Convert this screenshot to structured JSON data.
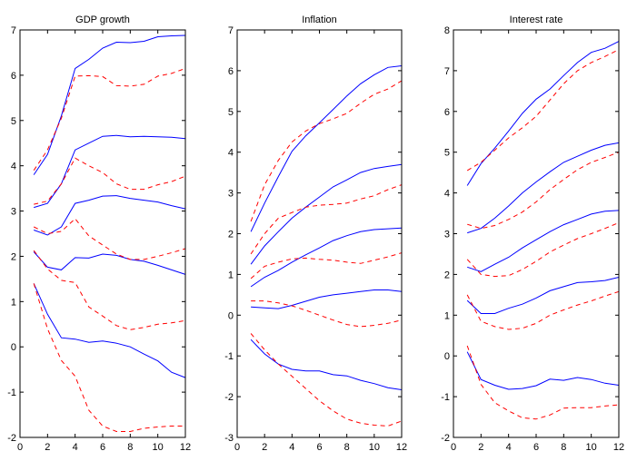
{
  "chart_data": [
    {
      "type": "line",
      "title": "GDP growth",
      "xlabel": "",
      "ylabel": "",
      "xlim": [
        0,
        12
      ],
      "ylim": [
        -2,
        7
      ],
      "xticks": [
        0,
        2,
        4,
        6,
        8,
        10,
        12
      ],
      "yticks": [
        -2,
        -1,
        0,
        1,
        2,
        3,
        4,
        5,
        6,
        7
      ],
      "grid": false,
      "legend": "none",
      "x": [
        1,
        2,
        3,
        4,
        5,
        6,
        7,
        8,
        9,
        10,
        11,
        12
      ],
      "series": [
        {
          "name": "solid-1",
          "style": "solid",
          "color": "#0000ff",
          "values": [
            3.8,
            4.25,
            5.1,
            6.15,
            6.35,
            6.6,
            6.73,
            6.72,
            6.75,
            6.85,
            6.87,
            6.88
          ]
        },
        {
          "name": "solid-2",
          "style": "solid",
          "color": "#0000ff",
          "values": [
            3.08,
            3.17,
            3.6,
            4.35,
            4.5,
            4.65,
            4.67,
            4.64,
            4.65,
            4.64,
            4.63,
            4.6
          ]
        },
        {
          "name": "solid-3",
          "style": "solid",
          "color": "#0000ff",
          "values": [
            2.58,
            2.47,
            2.65,
            3.17,
            3.24,
            3.33,
            3.34,
            3.28,
            3.24,
            3.2,
            3.12,
            3.05
          ]
        },
        {
          "name": "solid-4",
          "style": "solid",
          "color": "#0000ff",
          "values": [
            2.1,
            1.76,
            1.7,
            1.97,
            1.96,
            2.05,
            2.02,
            1.93,
            1.89,
            1.8,
            1.7,
            1.6
          ]
        },
        {
          "name": "solid-5",
          "style": "solid",
          "color": "#0000ff",
          "values": [
            1.4,
            0.72,
            0.2,
            0.17,
            0.1,
            0.13,
            0.08,
            0.0,
            -0.16,
            -0.31,
            -0.56,
            -0.68
          ]
        },
        {
          "name": "dashed-1",
          "style": "dashed",
          "color": "#ff0000",
          "values": [
            3.9,
            4.35,
            5.05,
            5.98,
            5.99,
            5.97,
            5.77,
            5.76,
            5.8,
            5.98,
            6.04,
            6.15
          ]
        },
        {
          "name": "dashed-2",
          "style": "dashed",
          "color": "#ff0000",
          "values": [
            3.15,
            3.22,
            3.6,
            4.17,
            4.0,
            3.85,
            3.6,
            3.48,
            3.48,
            3.58,
            3.65,
            3.77
          ]
        },
        {
          "name": "dashed-3",
          "style": "dashed",
          "color": "#ff0000",
          "values": [
            2.65,
            2.5,
            2.55,
            2.83,
            2.45,
            2.25,
            2.05,
            1.93,
            1.93,
            2.0,
            2.08,
            2.17
          ]
        },
        {
          "name": "dashed-4",
          "style": "dashed",
          "color": "#ff0000",
          "values": [
            2.13,
            1.72,
            1.47,
            1.42,
            0.88,
            0.68,
            0.47,
            0.38,
            0.43,
            0.5,
            0.53,
            0.58
          ]
        },
        {
          "name": "dashed-5",
          "style": "dashed",
          "color": "#ff0000",
          "values": [
            1.4,
            0.4,
            -0.3,
            -0.65,
            -1.4,
            -1.75,
            -1.87,
            -1.87,
            -1.8,
            -1.77,
            -1.75,
            -1.75
          ]
        }
      ]
    },
    {
      "type": "line",
      "title": "Inflation",
      "xlabel": "",
      "ylabel": "",
      "xlim": [
        0,
        12
      ],
      "ylim": [
        -3,
        7
      ],
      "xticks": [
        0,
        2,
        4,
        6,
        8,
        10,
        12
      ],
      "yticks": [
        -3,
        -2,
        -1,
        0,
        1,
        2,
        3,
        4,
        5,
        6,
        7
      ],
      "grid": false,
      "legend": "none",
      "x": [
        1,
        2,
        3,
        4,
        5,
        6,
        7,
        8,
        9,
        10,
        11,
        12
      ],
      "series": [
        {
          "name": "solid-1",
          "style": "solid",
          "color": "#0000ff",
          "values": [
            2.05,
            2.75,
            3.4,
            4.02,
            4.4,
            4.72,
            5.05,
            5.38,
            5.68,
            5.9,
            6.08,
            6.12
          ]
        },
        {
          "name": "solid-2",
          "style": "solid",
          "color": "#0000ff",
          "values": [
            1.25,
            1.7,
            2.05,
            2.38,
            2.65,
            2.9,
            3.15,
            3.32,
            3.5,
            3.6,
            3.65,
            3.7
          ]
        },
        {
          "name": "solid-3",
          "style": "solid",
          "color": "#0000ff",
          "values": [
            0.7,
            0.93,
            1.1,
            1.3,
            1.48,
            1.65,
            1.83,
            1.95,
            2.05,
            2.1,
            2.12,
            2.14
          ]
        },
        {
          "name": "solid-4",
          "style": "solid",
          "color": "#0000ff",
          "values": [
            0.2,
            0.18,
            0.16,
            0.24,
            0.34,
            0.44,
            0.5,
            0.54,
            0.58,
            0.62,
            0.62,
            0.58
          ]
        },
        {
          "name": "solid-5",
          "style": "solid",
          "color": "#0000ff",
          "values": [
            -0.6,
            -0.95,
            -1.2,
            -1.33,
            -1.37,
            -1.37,
            -1.46,
            -1.49,
            -1.6,
            -1.68,
            -1.78,
            -1.83
          ]
        },
        {
          "name": "dashed-1",
          "style": "dashed",
          "color": "#ff0000",
          "values": [
            2.3,
            3.2,
            3.8,
            4.25,
            4.52,
            4.7,
            4.82,
            4.95,
            5.2,
            5.42,
            5.55,
            5.75
          ]
        },
        {
          "name": "dashed-2",
          "style": "dashed",
          "color": "#ff0000",
          "values": [
            1.5,
            2.0,
            2.38,
            2.52,
            2.65,
            2.7,
            2.72,
            2.75,
            2.85,
            2.93,
            3.08,
            3.2
          ]
        },
        {
          "name": "dashed-3",
          "style": "dashed",
          "color": "#ff0000",
          "values": [
            0.9,
            1.2,
            1.3,
            1.38,
            1.4,
            1.37,
            1.35,
            1.3,
            1.27,
            1.35,
            1.43,
            1.53
          ]
        },
        {
          "name": "dashed-4",
          "style": "dashed",
          "color": "#ff0000",
          "values": [
            0.35,
            0.35,
            0.3,
            0.23,
            0.12,
            0.0,
            -0.12,
            -0.23,
            -0.28,
            -0.25,
            -0.2,
            -0.12
          ]
        },
        {
          "name": "dashed-5",
          "style": "dashed",
          "color": "#ff0000",
          "values": [
            -0.45,
            -0.85,
            -1.2,
            -1.5,
            -1.8,
            -2.1,
            -2.35,
            -2.55,
            -2.65,
            -2.7,
            -2.72,
            -2.6
          ]
        }
      ]
    },
    {
      "type": "line",
      "title": "Interest rate",
      "xlabel": "",
      "ylabel": "",
      "xlim": [
        0,
        12
      ],
      "ylim": [
        -2,
        8
      ],
      "xticks": [
        0,
        2,
        4,
        6,
        8,
        10,
        12
      ],
      "yticks": [
        -2,
        -1,
        0,
        1,
        2,
        3,
        4,
        5,
        6,
        7,
        8
      ],
      "grid": false,
      "legend": "none",
      "x": [
        1,
        2,
        3,
        4,
        5,
        6,
        7,
        8,
        9,
        10,
        11,
        12
      ],
      "series": [
        {
          "name": "solid-1",
          "style": "solid",
          "color": "#0000ff",
          "values": [
            4.18,
            4.72,
            5.1,
            5.52,
            5.95,
            6.3,
            6.55,
            6.88,
            7.2,
            7.45,
            7.55,
            7.72
          ]
        },
        {
          "name": "solid-2",
          "style": "solid",
          "color": "#0000ff",
          "values": [
            3.02,
            3.13,
            3.38,
            3.68,
            4.0,
            4.27,
            4.52,
            4.75,
            4.9,
            5.05,
            5.17,
            5.23
          ]
        },
        {
          "name": "solid-3",
          "style": "solid",
          "color": "#0000ff",
          "values": [
            2.18,
            2.07,
            2.25,
            2.42,
            2.65,
            2.85,
            3.05,
            3.22,
            3.35,
            3.48,
            3.55,
            3.57
          ]
        },
        {
          "name": "solid-4",
          "style": "solid",
          "color": "#0000ff",
          "values": [
            1.36,
            1.04,
            1.04,
            1.17,
            1.27,
            1.42,
            1.6,
            1.7,
            1.8,
            1.82,
            1.85,
            1.93
          ]
        },
        {
          "name": "solid-5",
          "style": "solid",
          "color": "#0000ff",
          "values": [
            0.1,
            -0.58,
            -0.72,
            -0.82,
            -0.8,
            -0.73,
            -0.57,
            -0.6,
            -0.53,
            -0.58,
            -0.67,
            -0.72
          ]
        },
        {
          "name": "dashed-1",
          "style": "dashed",
          "color": "#ff0000",
          "values": [
            4.55,
            4.75,
            5.05,
            5.35,
            5.6,
            5.88,
            6.28,
            6.68,
            7.0,
            7.2,
            7.35,
            7.52
          ]
        },
        {
          "name": "dashed-2",
          "style": "dashed",
          "color": "#ff0000",
          "values": [
            3.23,
            3.13,
            3.2,
            3.35,
            3.53,
            3.78,
            4.08,
            4.33,
            4.57,
            4.75,
            4.87,
            5.0
          ]
        },
        {
          "name": "dashed-3",
          "style": "dashed",
          "color": "#ff0000",
          "values": [
            2.37,
            2.0,
            1.95,
            1.97,
            2.12,
            2.32,
            2.55,
            2.72,
            2.88,
            3.0,
            3.13,
            3.27
          ]
        },
        {
          "name": "dashed-4",
          "style": "dashed",
          "color": "#ff0000",
          "values": [
            1.5,
            0.85,
            0.72,
            0.65,
            0.68,
            0.8,
            1.0,
            1.13,
            1.25,
            1.35,
            1.47,
            1.58
          ]
        },
        {
          "name": "dashed-5",
          "style": "dashed",
          "color": "#ff0000",
          "values": [
            0.25,
            -0.7,
            -1.15,
            -1.35,
            -1.52,
            -1.55,
            -1.45,
            -1.28,
            -1.27,
            -1.27,
            -1.23,
            -1.2
          ]
        }
      ]
    }
  ]
}
